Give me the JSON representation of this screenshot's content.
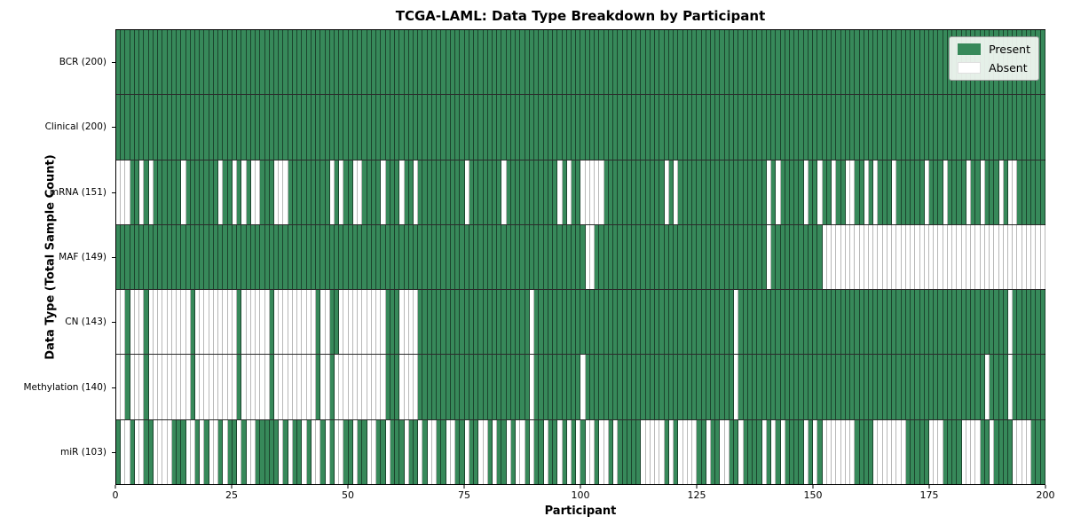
{
  "title": "TCGA-LAML: Data Type Breakdown by Participant",
  "x_axis": {
    "label": "Participant",
    "ticks": [
      "0",
      "25",
      "50",
      "75",
      "100",
      "125",
      "150",
      "175",
      "200"
    ]
  },
  "y_axis": {
    "label": "Data Type (Total Sample Count)"
  },
  "legend": {
    "items": [
      {
        "label": "Present",
        "color": "#37895a"
      },
      {
        "label": "Absent",
        "color": "#ffffff"
      }
    ]
  },
  "colors": {
    "present": "#37895a",
    "absent": "#ffffff",
    "cell_border": "rgba(0,0,0,0.5)"
  },
  "chart_data": {
    "type": "heatmap",
    "title": "TCGA-LAML: Data Type Breakdown by Participant",
    "xlabel": "Participant",
    "ylabel": "Data Type (Total Sample Count)",
    "x_range": [
      0,
      200
    ],
    "x_ticks": [
      0,
      25,
      50,
      75,
      100,
      125,
      150,
      175,
      200
    ],
    "legend_entries": [
      "Present",
      "Absent"
    ],
    "value_encoding": {
      "1": "Present",
      "0": "Absent"
    },
    "rows": [
      {
        "label": "BCR (200)",
        "name": "BCR",
        "present_count": 200,
        "pattern": "11111111111111111111111111111111111111111111111111111111111111111111111111111111111111111111111111111111111111111111111111111111111111111111111111111111111111111111111111111111111111111111111111111111"
      },
      {
        "label": "Clinical (200)",
        "name": "Clinical",
        "present_count": 200,
        "pattern": "11111111111111111111111111111111111111111111111111111111111111111111111111111111111111111111111111111111111111111111111111111111111111111111111111111111111111111111111111111111111111111111111111111111"
      },
      {
        "label": "mRNA (151)",
        "name": "mRNA",
        "present_count": 151,
        "pattern": "00011010111111011111110110101001110001111111110101100111101110110111111111101111111011111111111010110000011111111111110101111111111111111111010111110110110110011010111011111101110111101101110100111111"
      },
      {
        "label": "MAF (149)",
        "name": "MAF",
        "present_count": 149,
        "pattern": "11111111111111111111111111111111111111111111111111111111111111111111111111111111111111111111111111111001111111111111111111111111111111111111011111111111000000000000000000000000000000000000000000000000"
      },
      {
        "label": "CN (143)",
        "name": "CN",
        "present_count": 143,
        "pattern": "00100010000000001000000000100000010000000001001100000000001110000111111111111111111111111011111111111111111111111111111111111111111110111111111111111111111111111111111111111111111111111111111101111111111"
      },
      {
        "label": "Methylation (140)",
        "name": "Methylation",
        "present_count": 140,
        "pattern": "00100010000000001000000000100000010000000001001000000000001110000111111111111111111111111011111111110111111111111111111111111111111110111111111111111111111111111111111111111111111111111110111101111111111"
      },
      {
        "label": "miR (103)",
        "name": "miR",
        "present_count": 103,
        "pattern": "10010011000011100101001011010011111010110100101001101100110111011010011001101100101101001011011010101001001011111000001010000110110011011110101011110101000000011110000000111110001111000011011110000111"
      }
    ]
  }
}
